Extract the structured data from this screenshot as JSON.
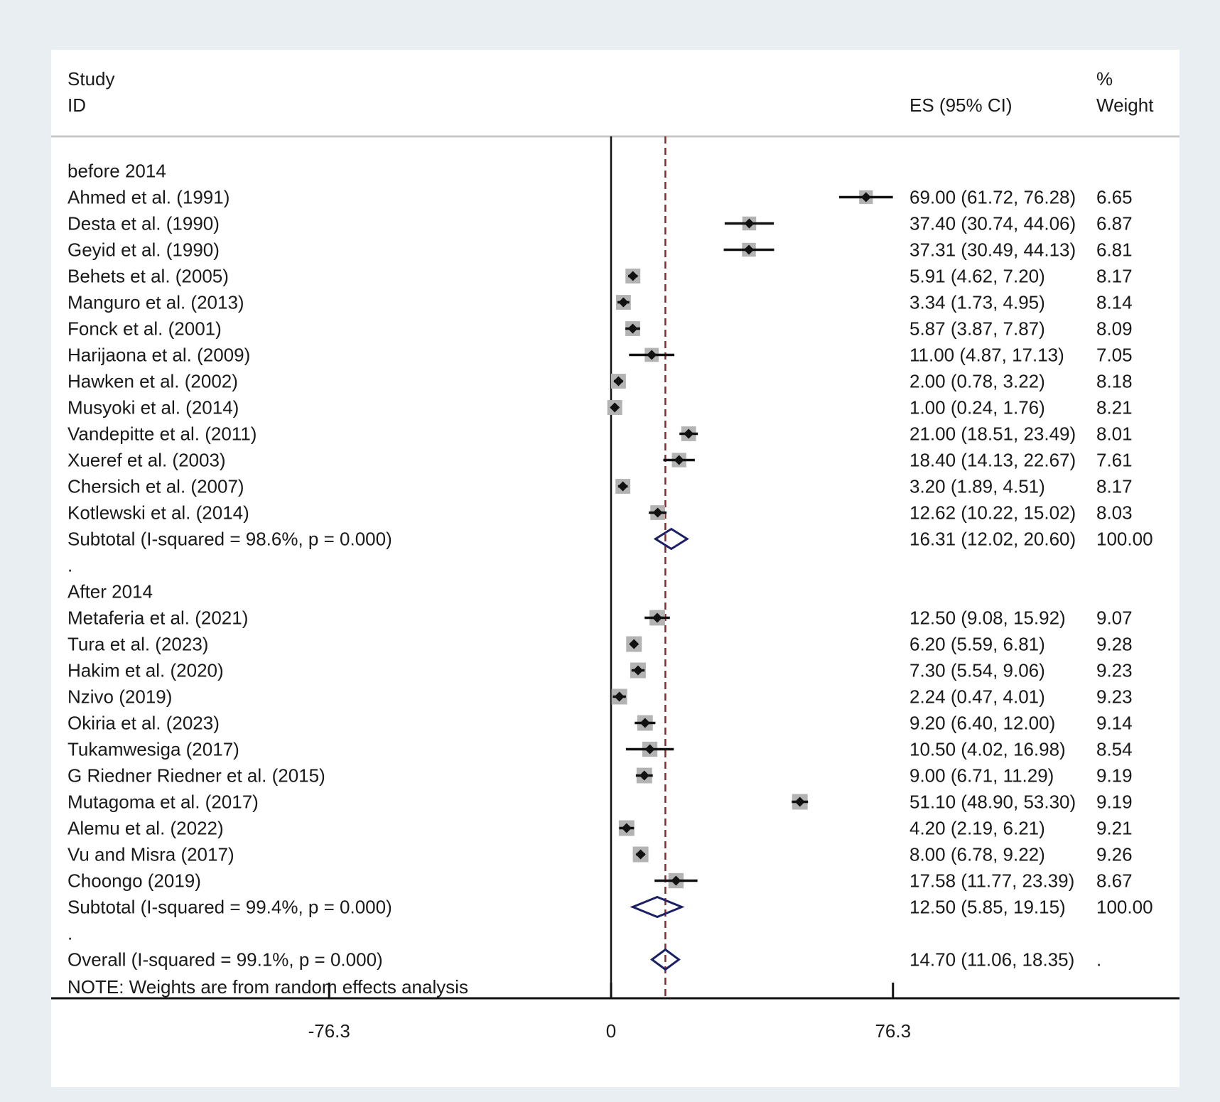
{
  "chart_data": {
    "type": "forest",
    "header": {
      "study_line1": "Study",
      "study_line2": "ID",
      "es_label": "ES (95% CI)",
      "weight_line1": "%",
      "weight_line2": "Weight"
    },
    "rows": [
      {
        "kind": "group",
        "label": "before 2014"
      },
      {
        "kind": "study",
        "label": "Ahmed et al. (1991)",
        "es": 69.0,
        "lo": 61.72,
        "hi": 76.28,
        "es_text": "69.00 (61.72, 76.28)",
        "weight": 6.65,
        "weight_text": "6.65"
      },
      {
        "kind": "study",
        "label": "Desta et al. (1990)",
        "es": 37.4,
        "lo": 30.74,
        "hi": 44.06,
        "es_text": "37.40 (30.74, 44.06)",
        "weight": 6.87,
        "weight_text": "6.87"
      },
      {
        "kind": "study",
        "label": "Geyid et al. (1990)",
        "es": 37.31,
        "lo": 30.49,
        "hi": 44.13,
        "es_text": "37.31 (30.49, 44.13)",
        "weight": 6.81,
        "weight_text": "6.81"
      },
      {
        "kind": "study",
        "label": "Behets et al. (2005)",
        "es": 5.91,
        "lo": 4.62,
        "hi": 7.2,
        "es_text": "5.91 (4.62, 7.20)",
        "weight": 8.17,
        "weight_text": "8.17"
      },
      {
        "kind": "study",
        "label": "Manguro et al. (2013)",
        "es": 3.34,
        "lo": 1.73,
        "hi": 4.95,
        "es_text": "3.34 (1.73, 4.95)",
        "weight": 8.14,
        "weight_text": "8.14"
      },
      {
        "kind": "study",
        "label": "Fonck et al. (2001)",
        "es": 5.87,
        "lo": 3.87,
        "hi": 7.87,
        "es_text": "5.87 (3.87, 7.87)",
        "weight": 8.09,
        "weight_text": "8.09"
      },
      {
        "kind": "study",
        "label": "Harijaona et al. (2009)",
        "es": 11.0,
        "lo": 4.87,
        "hi": 17.13,
        "es_text": "11.00 (4.87, 17.13)",
        "weight": 7.05,
        "weight_text": "7.05"
      },
      {
        "kind": "study",
        "label": "Hawken et al. (2002)",
        "es": 2.0,
        "lo": 0.78,
        "hi": 3.22,
        "es_text": "2.00 (0.78, 3.22)",
        "weight": 8.18,
        "weight_text": "8.18"
      },
      {
        "kind": "study",
        "label": "Musyoki et al. (2014)",
        "es": 1.0,
        "lo": 0.24,
        "hi": 1.76,
        "es_text": "1.00 (0.24, 1.76)",
        "weight": 8.21,
        "weight_text": "8.21"
      },
      {
        "kind": "study",
        "label": "Vandepitte et al. (2011)",
        "es": 21.0,
        "lo": 18.51,
        "hi": 23.49,
        "es_text": "21.00 (18.51, 23.49)",
        "weight": 8.01,
        "weight_text": "8.01"
      },
      {
        "kind": "study",
        "label": "Xueref et al. (2003)",
        "es": 18.4,
        "lo": 14.13,
        "hi": 22.67,
        "es_text": "18.40 (14.13, 22.67)",
        "weight": 7.61,
        "weight_text": "7.61"
      },
      {
        "kind": "study",
        "label": "Chersich et al. (2007)",
        "es": 3.2,
        "lo": 1.89,
        "hi": 4.51,
        "es_text": "3.20 (1.89, 4.51)",
        "weight": 8.17,
        "weight_text": "8.17"
      },
      {
        "kind": "study",
        "label": "Kotlewski et al. (2014)",
        "es": 12.62,
        "lo": 10.22,
        "hi": 15.02,
        "es_text": "12.62 (10.22, 15.02)",
        "weight": 8.03,
        "weight_text": "8.03"
      },
      {
        "kind": "subtotal",
        "label": "Subtotal  (I-squared = 98.6%, p = 0.000)",
        "es": 16.31,
        "lo": 12.02,
        "hi": 20.6,
        "es_text": "16.31 (12.02, 20.60)",
        "weight_text": "100.00"
      },
      {
        "kind": "spacer",
        "label": "."
      },
      {
        "kind": "group",
        "label": "After 2014"
      },
      {
        "kind": "study",
        "label": "Metaferia et al. (2021)",
        "es": 12.5,
        "lo": 9.08,
        "hi": 15.92,
        "es_text": "12.50 (9.08, 15.92)",
        "weight": 9.07,
        "weight_text": "9.07"
      },
      {
        "kind": "study",
        "label": "Tura et al. (2023)",
        "es": 6.2,
        "lo": 5.59,
        "hi": 6.81,
        "es_text": "6.20 (5.59, 6.81)",
        "weight": 9.28,
        "weight_text": "9.28"
      },
      {
        "kind": "study",
        "label": "Hakim et al. (2020)",
        "es": 7.3,
        "lo": 5.54,
        "hi": 9.06,
        "es_text": "7.30 (5.54, 9.06)",
        "weight": 9.23,
        "weight_text": "9.23"
      },
      {
        "kind": "study",
        "label": "Nzivo (2019)",
        "es": 2.24,
        "lo": 0.47,
        "hi": 4.01,
        "es_text": "2.24 (0.47, 4.01)",
        "weight": 9.23,
        "weight_text": "9.23"
      },
      {
        "kind": "study",
        "label": "Okiria et al. (2023)",
        "es": 9.2,
        "lo": 6.4,
        "hi": 12.0,
        "es_text": "9.20 (6.40, 12.00)",
        "weight": 9.14,
        "weight_text": "9.14"
      },
      {
        "kind": "study",
        "label": "Tukamwesiga (2017)",
        "es": 10.5,
        "lo": 4.02,
        "hi": 16.98,
        "es_text": "10.50 (4.02, 16.98)",
        "weight": 8.54,
        "weight_text": "8.54"
      },
      {
        "kind": "study",
        "label": "G Riedner Riedner et al. (2015)",
        "es": 9.0,
        "lo": 6.71,
        "hi": 11.29,
        "es_text": "9.00 (6.71, 11.29)",
        "weight": 9.19,
        "weight_text": "9.19"
      },
      {
        "kind": "study",
        "label": "Mutagoma et al. (2017)",
        "es": 51.1,
        "lo": 48.9,
        "hi": 53.3,
        "es_text": "51.10 (48.90, 53.30)",
        "weight": 9.19,
        "weight_text": "9.19"
      },
      {
        "kind": "study",
        "label": "Alemu et al. (2022)",
        "es": 4.2,
        "lo": 2.19,
        "hi": 6.21,
        "es_text": "4.20 (2.19, 6.21)",
        "weight": 9.21,
        "weight_text": "9.21"
      },
      {
        "kind": "study",
        "label": "Vu and Misra (2017)",
        "es": 8.0,
        "lo": 6.78,
        "hi": 9.22,
        "es_text": "8.00 (6.78, 9.22)",
        "weight": 9.26,
        "weight_text": "9.26"
      },
      {
        "kind": "study",
        "label": "Choongo (2019)",
        "es": 17.58,
        "lo": 11.77,
        "hi": 23.39,
        "es_text": "17.58 (11.77, 23.39)",
        "weight": 8.67,
        "weight_text": "8.67"
      },
      {
        "kind": "subtotal",
        "label": "Subtotal  (I-squared = 99.4%, p = 0.000)",
        "es": 12.5,
        "lo": 5.85,
        "hi": 19.15,
        "es_text": "12.50 (5.85, 19.15)",
        "weight_text": "100.00"
      },
      {
        "kind": "spacer",
        "label": "."
      },
      {
        "kind": "overall",
        "label": "Overall  (I-squared = 99.1%, p = 0.000)",
        "es": 14.7,
        "lo": 11.06,
        "hi": 18.35,
        "es_text": "14.70 (11.06, 18.35)",
        "weight_text": "."
      }
    ],
    "note": "NOTE: Weights are from random effects analysis",
    "x_axis": {
      "ticks": [
        -76.3,
        0,
        76.3
      ],
      "tick_labels": [
        "-76.3",
        "0",
        "76.3"
      ],
      "null_line": 0,
      "overall_line": 14.7
    },
    "colors": {
      "background": "#e8eef2",
      "panel": "#ffffff",
      "marker": "#111111",
      "weight_box": "#b3b3b3",
      "diamond": "#1b1f66",
      "overall_line": "#8b2a2a"
    }
  }
}
